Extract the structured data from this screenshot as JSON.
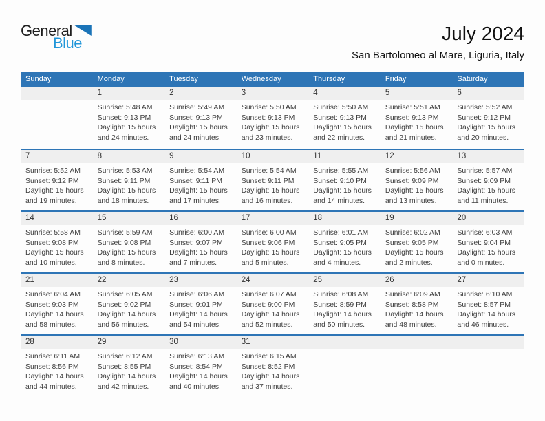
{
  "logo": {
    "part1": "General",
    "part2": "Blue"
  },
  "header": {
    "title": "July 2024",
    "subtitle": "San Bartolomeo al Mare, Liguria, Italy"
  },
  "colors": {
    "header_bar": "#2E75B6",
    "week_separator": "#2E75B6",
    "day_number_band": "#EFEFEF",
    "cell_text": "#3F3F3F",
    "logo_blue": "#2196D9",
    "logo_triangle": "#1B74B8"
  },
  "calendar": {
    "weekdays": [
      "Sunday",
      "Monday",
      "Tuesday",
      "Wednesday",
      "Thursday",
      "Friday",
      "Saturday"
    ],
    "weeks": [
      {
        "days": [
          null,
          {
            "num": "1",
            "sunrise": "Sunrise: 5:48 AM",
            "sunset": "Sunset: 9:13 PM",
            "daylight": "Daylight: 15 hours and 24 minutes."
          },
          {
            "num": "2",
            "sunrise": "Sunrise: 5:49 AM",
            "sunset": "Sunset: 9:13 PM",
            "daylight": "Daylight: 15 hours and 24 minutes."
          },
          {
            "num": "3",
            "sunrise": "Sunrise: 5:50 AM",
            "sunset": "Sunset: 9:13 PM",
            "daylight": "Daylight: 15 hours and 23 minutes."
          },
          {
            "num": "4",
            "sunrise": "Sunrise: 5:50 AM",
            "sunset": "Sunset: 9:13 PM",
            "daylight": "Daylight: 15 hours and 22 minutes."
          },
          {
            "num": "5",
            "sunrise": "Sunrise: 5:51 AM",
            "sunset": "Sunset: 9:13 PM",
            "daylight": "Daylight: 15 hours and 21 minutes."
          },
          {
            "num": "6",
            "sunrise": "Sunrise: 5:52 AM",
            "sunset": "Sunset: 9:12 PM",
            "daylight": "Daylight: 15 hours and 20 minutes."
          }
        ]
      },
      {
        "days": [
          {
            "num": "7",
            "sunrise": "Sunrise: 5:52 AM",
            "sunset": "Sunset: 9:12 PM",
            "daylight": "Daylight: 15 hours and 19 minutes."
          },
          {
            "num": "8",
            "sunrise": "Sunrise: 5:53 AM",
            "sunset": "Sunset: 9:11 PM",
            "daylight": "Daylight: 15 hours and 18 minutes."
          },
          {
            "num": "9",
            "sunrise": "Sunrise: 5:54 AM",
            "sunset": "Sunset: 9:11 PM",
            "daylight": "Daylight: 15 hours and 17 minutes."
          },
          {
            "num": "10",
            "sunrise": "Sunrise: 5:54 AM",
            "sunset": "Sunset: 9:11 PM",
            "daylight": "Daylight: 15 hours and 16 minutes."
          },
          {
            "num": "11",
            "sunrise": "Sunrise: 5:55 AM",
            "sunset": "Sunset: 9:10 PM",
            "daylight": "Daylight: 15 hours and 14 minutes."
          },
          {
            "num": "12",
            "sunrise": "Sunrise: 5:56 AM",
            "sunset": "Sunset: 9:09 PM",
            "daylight": "Daylight: 15 hours and 13 minutes."
          },
          {
            "num": "13",
            "sunrise": "Sunrise: 5:57 AM",
            "sunset": "Sunset: 9:09 PM",
            "daylight": "Daylight: 15 hours and 11 minutes."
          }
        ]
      },
      {
        "days": [
          {
            "num": "14",
            "sunrise": "Sunrise: 5:58 AM",
            "sunset": "Sunset: 9:08 PM",
            "daylight": "Daylight: 15 hours and 10 minutes."
          },
          {
            "num": "15",
            "sunrise": "Sunrise: 5:59 AM",
            "sunset": "Sunset: 9:08 PM",
            "daylight": "Daylight: 15 hours and 8 minutes."
          },
          {
            "num": "16",
            "sunrise": "Sunrise: 6:00 AM",
            "sunset": "Sunset: 9:07 PM",
            "daylight": "Daylight: 15 hours and 7 minutes."
          },
          {
            "num": "17",
            "sunrise": "Sunrise: 6:00 AM",
            "sunset": "Sunset: 9:06 PM",
            "daylight": "Daylight: 15 hours and 5 minutes."
          },
          {
            "num": "18",
            "sunrise": "Sunrise: 6:01 AM",
            "sunset": "Sunset: 9:05 PM",
            "daylight": "Daylight: 15 hours and 4 minutes."
          },
          {
            "num": "19",
            "sunrise": "Sunrise: 6:02 AM",
            "sunset": "Sunset: 9:05 PM",
            "daylight": "Daylight: 15 hours and 2 minutes."
          },
          {
            "num": "20",
            "sunrise": "Sunrise: 6:03 AM",
            "sunset": "Sunset: 9:04 PM",
            "daylight": "Daylight: 15 hours and 0 minutes."
          }
        ]
      },
      {
        "days": [
          {
            "num": "21",
            "sunrise": "Sunrise: 6:04 AM",
            "sunset": "Sunset: 9:03 PM",
            "daylight": "Daylight: 14 hours and 58 minutes."
          },
          {
            "num": "22",
            "sunrise": "Sunrise: 6:05 AM",
            "sunset": "Sunset: 9:02 PM",
            "daylight": "Daylight: 14 hours and 56 minutes."
          },
          {
            "num": "23",
            "sunrise": "Sunrise: 6:06 AM",
            "sunset": "Sunset: 9:01 PM",
            "daylight": "Daylight: 14 hours and 54 minutes."
          },
          {
            "num": "24",
            "sunrise": "Sunrise: 6:07 AM",
            "sunset": "Sunset: 9:00 PM",
            "daylight": "Daylight: 14 hours and 52 minutes."
          },
          {
            "num": "25",
            "sunrise": "Sunrise: 6:08 AM",
            "sunset": "Sunset: 8:59 PM",
            "daylight": "Daylight: 14 hours and 50 minutes."
          },
          {
            "num": "26",
            "sunrise": "Sunrise: 6:09 AM",
            "sunset": "Sunset: 8:58 PM",
            "daylight": "Daylight: 14 hours and 48 minutes."
          },
          {
            "num": "27",
            "sunrise": "Sunrise: 6:10 AM",
            "sunset": "Sunset: 8:57 PM",
            "daylight": "Daylight: 14 hours and 46 minutes."
          }
        ]
      },
      {
        "days": [
          {
            "num": "28",
            "sunrise": "Sunrise: 6:11 AM",
            "sunset": "Sunset: 8:56 PM",
            "daylight": "Daylight: 14 hours and 44 minutes."
          },
          {
            "num": "29",
            "sunrise": "Sunrise: 6:12 AM",
            "sunset": "Sunset: 8:55 PM",
            "daylight": "Daylight: 14 hours and 42 minutes."
          },
          {
            "num": "30",
            "sunrise": "Sunrise: 6:13 AM",
            "sunset": "Sunset: 8:54 PM",
            "daylight": "Daylight: 14 hours and 40 minutes."
          },
          {
            "num": "31",
            "sunrise": "Sunrise: 6:15 AM",
            "sunset": "Sunset: 8:52 PM",
            "daylight": "Daylight: 14 hours and 37 minutes."
          },
          null,
          null,
          null
        ]
      }
    ]
  }
}
